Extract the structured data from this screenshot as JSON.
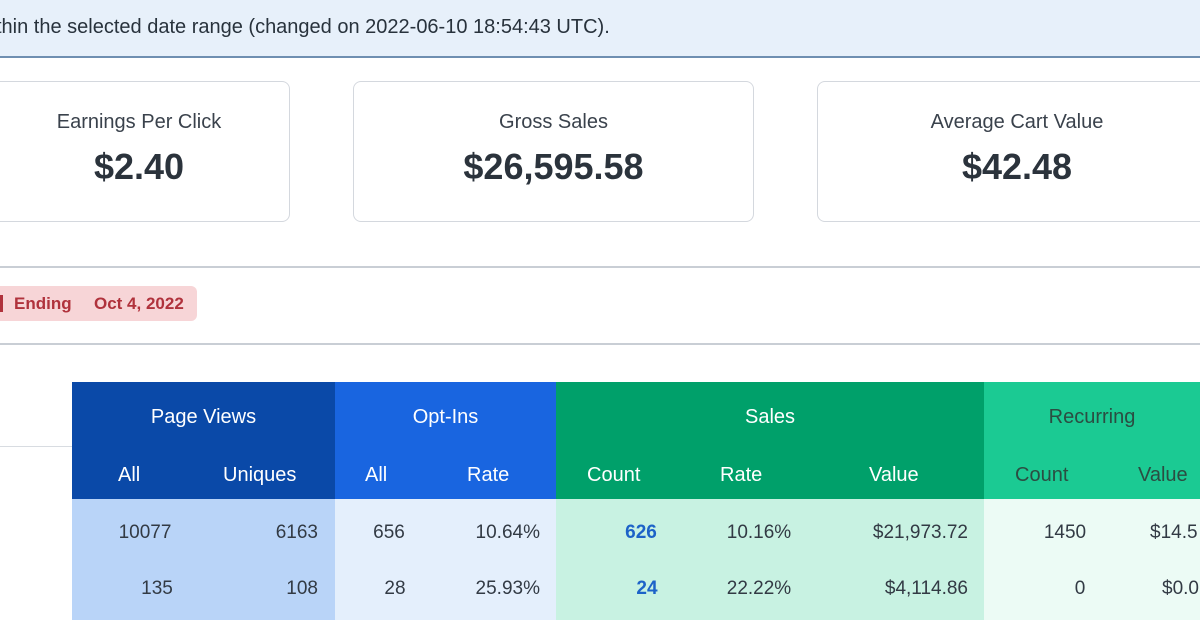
{
  "banner": {
    "text": "thin the selected date range (changed on 2022-06-10 18:54:43 UTC)."
  },
  "stats": {
    "epc": {
      "label": "Earnings Per Click",
      "value": "$2.40"
    },
    "gross": {
      "label": "Gross Sales",
      "value": "$26,595.58"
    },
    "acv": {
      "label": "Average Cart Value",
      "value": "$42.48"
    }
  },
  "ending": {
    "label": "Ending",
    "date": "Oct 4, 2022"
  },
  "table": {
    "groups": {
      "page_views": "Page Views",
      "opt_ins": "Opt-Ins",
      "sales": "Sales",
      "recurring": "Recurring"
    },
    "subheaders": {
      "pv_all": "All",
      "pv_uniques": "Uniques",
      "opt_all": "All",
      "opt_rate": "Rate",
      "sales_count": "Count",
      "sales_rate": "Rate",
      "sales_value": "Value",
      "rec_count": "Count",
      "rec_value": "Value"
    },
    "rows": [
      {
        "pv_all": "10077",
        "pv_uniques": "6163",
        "opt_all": "656",
        "opt_rate": "10.64%",
        "sales_count": "626",
        "sales_rate": "10.16%",
        "sales_value": "$21,973.72",
        "rec_count": "1450",
        "rec_value": "$14.5"
      },
      {
        "pv_all": "135",
        "pv_uniques": "108",
        "opt_all": "28",
        "opt_rate": "25.93%",
        "sales_count": "24",
        "sales_rate": "22.22%",
        "sales_value": "$4,114.86",
        "rec_count": "0",
        "rec_value": "$0.0"
      }
    ]
  },
  "colors": {
    "page_views": "#0a49a8",
    "opt_ins": "#1965e0",
    "sales": "#00a06a",
    "recurring": "#1bca93",
    "link": "#1d63c8",
    "ending_badge": "#f7d5d7"
  }
}
